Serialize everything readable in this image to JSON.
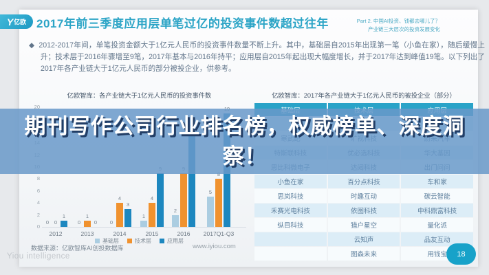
{
  "slide": {
    "logo": {
      "symbol": "Y",
      "text": "亿欧"
    },
    "title": "2017年前三季度应用层单笔过亿的投资事件数超过往年",
    "part_line1": "Part 2. 中国AI投资、钱都去哪儿了？",
    "part_line2": "产业链三大层次的投资发展变化",
    "bullet": "◆",
    "paragraph": "2012-2017年间，单笔投资金额大于1亿元人民币的投资事件数量不断上升。其中，基础层自2015年出现第一笔（小鱼在家），随后缓慢上升；技术层于2016年骤增至9笔，2017年基本与2016年持平；应用层自2015年起出现大幅度增长，并于2017年达到峰值19笔。以下列出了2017年各产业链大于1亿元人民币的部分被投企业，供参考。",
    "source_note": "数据来源：亿欧智库AI创投数据库",
    "website": "www.iyiou.com",
    "watermark": "Yiou intelligence",
    "page_number": "18"
  },
  "chart_data": {
    "type": "bar",
    "title": "亿欧智库：各产业链大于1亿元人民币的投资事件数",
    "categories": [
      "2012",
      "2013",
      "2014",
      "2015",
      "2016",
      "2017Q1-Q3"
    ],
    "series": [
      {
        "name": "基础层",
        "color": "#abcde1",
        "values": [
          0,
          0,
          0,
          1,
          2,
          5
        ]
      },
      {
        "name": "技术层",
        "color": "#f0922f",
        "values": [
          0,
          1,
          4,
          4,
          9,
          8
        ]
      },
      {
        "name": "应用层",
        "color": "#1d87bf",
        "values": [
          1,
          0,
          3,
          9,
          16,
          19
        ]
      }
    ],
    "ylim": [
      0,
      20
    ],
    "ytick_step": 2,
    "legend_position": "bottom",
    "grid": false
  },
  "table": {
    "caption": "亿欧智库：2017年各产业链大于1亿元人民币的被投企业（部分）",
    "headers": [
      "基础层",
      "技术层",
      "应用层"
    ],
    "rows": [
      [
        "",
        "",
        ""
      ],
      [
        "寒武纪",
        "旷视科技",
        "蔚来汽车"
      ],
      [
        "特斯联科技",
        "优必选科技",
        "华大基因"
      ],
      [
        "思比科微电子",
        "达闼科技",
        "出门问问"
      ],
      [
        "小鱼在家",
        "百分点科技",
        "车和家"
      ],
      [
        "思岚科技",
        "时趣互动",
        "碳云智能"
      ],
      [
        "禾赛光电科技",
        "依图科技",
        "中科鼎富科技"
      ],
      [
        "纵目科技",
        "猎户星空",
        "量化派"
      ],
      [
        "",
        "云知声",
        "品友互动"
      ],
      [
        "",
        "图森未来",
        "用钱宝"
      ]
    ]
  },
  "overlay": {
    "lines": [
      "期刊写作公司行业排名榜，权威榜单、深度洞",
      "察！"
    ],
    "background_color": "#6899c9",
    "shadow_color": "#223e66"
  },
  "colors": {
    "accent_teal": "#2ba4c6",
    "table_header": "#2aa3c8",
    "badge": "#17a2c9"
  }
}
